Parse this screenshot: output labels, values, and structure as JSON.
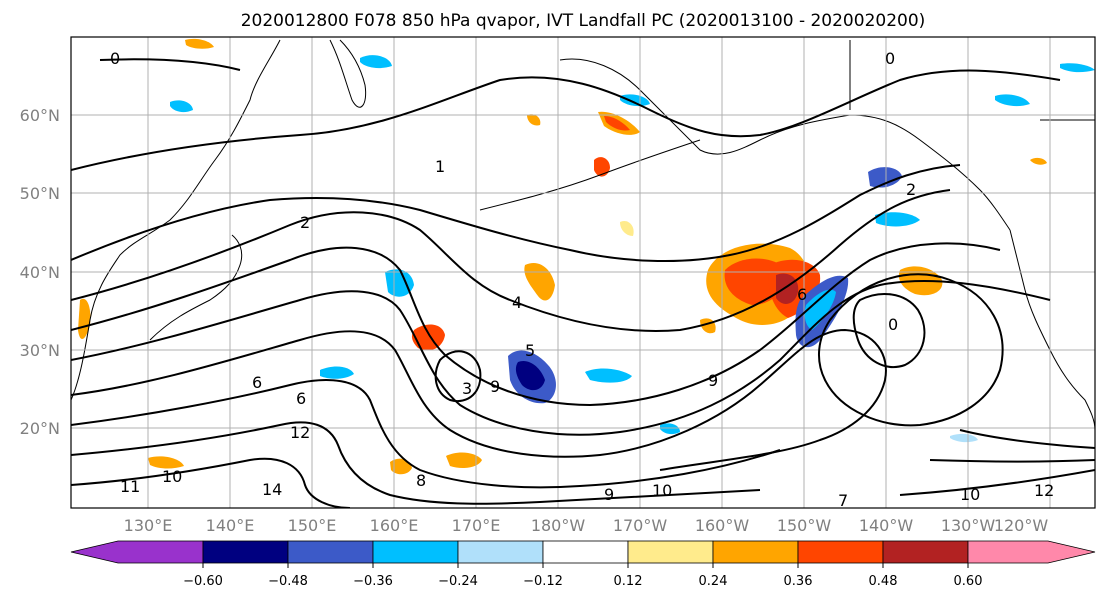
{
  "title": "2020012800 F078 850 hPa qvapor, IVT Landfall PC (2020013100 - 2020020200)",
  "lat_labels": [
    "60°N",
    "50°N",
    "40°N",
    "30°N",
    "20°N"
  ],
  "lon_labels": [
    "130°E",
    "140°E",
    "150°E",
    "160°E",
    "170°E",
    "180°W",
    "170°W",
    "160°W",
    "150°W",
    "140°W",
    "130°W",
    "120°W"
  ],
  "colorbar": {
    "tick_labels": [
      "−0.60",
      "−0.48",
      "−0.36",
      "−0.24",
      "−0.12",
      "0.12",
      "0.24",
      "0.36",
      "0.48",
      "0.60"
    ],
    "colors": [
      "#9932cc",
      "#000080",
      "#3c5ac8",
      "#00bfff",
      "#b0e0fa",
      "#ffffff",
      "#ffeb8c",
      "#ffa500",
      "#ff4500",
      "#b22222",
      "#ff88aa"
    ]
  },
  "contour_labels": [
    "0",
    "0",
    "1",
    "2",
    "2",
    "0",
    "4",
    "5",
    "6",
    "6",
    "6",
    "9",
    "9",
    "12",
    "10",
    "11",
    "14",
    "7",
    "9",
    "10",
    "12",
    "10",
    "8",
    "3"
  ]
}
